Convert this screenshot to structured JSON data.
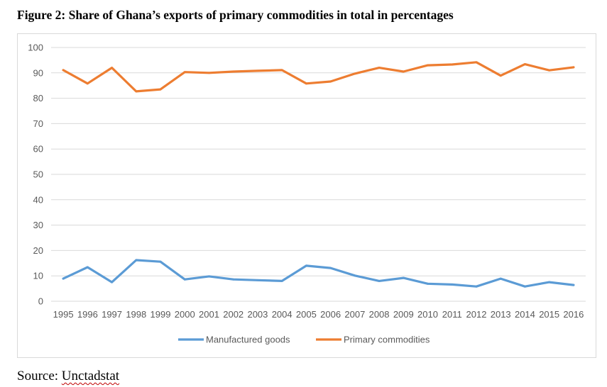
{
  "figure": {
    "title": "Figure 2: Share of Ghana’s exports of primary commodities in total in percentages",
    "source_label": "Source:",
    "source_name": "Unctadstat"
  },
  "chart_data": {
    "type": "line",
    "title": "",
    "xlabel": "",
    "ylabel": "",
    "ylim": [
      0,
      100
    ],
    "yticks": [
      0,
      10,
      20,
      30,
      40,
      50,
      60,
      70,
      80,
      90,
      100
    ],
    "grid": true,
    "legend_position": "bottom",
    "categories": [
      "1995",
      "1996",
      "1997",
      "1998",
      "1999",
      "2000",
      "2001",
      "2002",
      "2003",
      "2004",
      "2005",
      "2006",
      "2007",
      "2008",
      "2009",
      "2010",
      "2011",
      "2012",
      "2013",
      "2014",
      "2015",
      "2016"
    ],
    "series": [
      {
        "name": "Manufactured goods",
        "color": "#5b9bd5",
        "values": [
          8.9,
          13.4,
          7.5,
          16.2,
          15.6,
          8.6,
          9.8,
          8.6,
          8.3,
          8.0,
          14.0,
          13.1,
          10.1,
          8.0,
          9.2,
          6.9,
          6.6,
          5.8,
          8.9,
          5.8,
          7.5,
          6.4
        ]
      },
      {
        "name": "Primary commodities",
        "color": "#ed7d31",
        "values": [
          91.1,
          85.8,
          92.0,
          82.7,
          83.5,
          90.3,
          90.0,
          90.5,
          90.8,
          91.1,
          85.8,
          86.6,
          89.7,
          92.0,
          90.5,
          93.0,
          93.3,
          94.2,
          88.9,
          93.4,
          91.0,
          92.2
        ]
      }
    ]
  }
}
